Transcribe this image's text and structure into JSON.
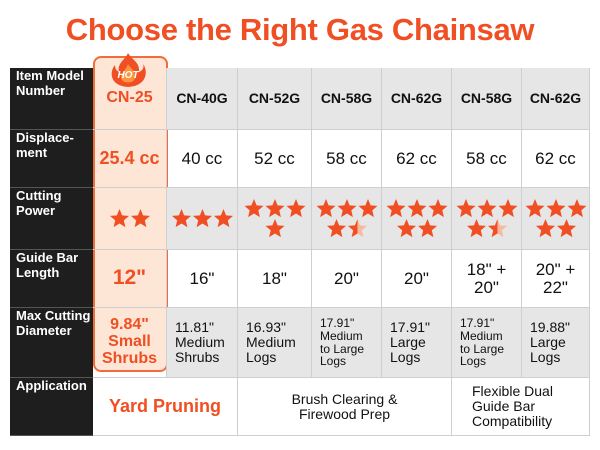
{
  "title": "Choose the Right Gas Chainsaw",
  "hot_badge": "HOT",
  "table": {
    "rows": [
      {
        "label": "Item Model\nNumber",
        "cells": [
          "CN-25",
          "CN-40G",
          "CN-52G",
          "CN-58G",
          "CN-62G",
          "CN-58G",
          "CN-62G"
        ]
      },
      {
        "label": "Displace-\nment",
        "cells": [
          "25.4 cc",
          "40 cc",
          "52 cc",
          "58 cc",
          "62 cc",
          "58 cc",
          "62 cc"
        ]
      },
      {
        "label": "Cutting\nPower",
        "values": [
          2,
          3,
          4,
          4.5,
          5,
          4.5,
          5
        ]
      },
      {
        "label": "Guide Bar\nLength",
        "cells": [
          "12\"",
          "16\"",
          "18\"",
          "20\"",
          "20\"",
          "18\" +\n20\"",
          "20\" +\n22\""
        ]
      },
      {
        "label": "Max Cutting\nDiameter",
        "cells": [
          "9.84\"\nSmall\nShrubs",
          "11.81\"\nMedium\nShrubs",
          "16.93\"\nMedium\nLogs",
          "17.91\"\nMedium\nto Large\nLogs",
          "17.91\"\nLarge\nLogs",
          "17.91\"\nMedium\nto Large\nLogs",
          "19.88\"\nLarge\nLogs"
        ]
      },
      {
        "label": "Application",
        "cells": [
          "Yard Pruning",
          "Brush Clearing &\nFirewood Prep",
          "Flexible Dual\nGuide Bar\nCompatibility"
        ]
      }
    ]
  }
}
